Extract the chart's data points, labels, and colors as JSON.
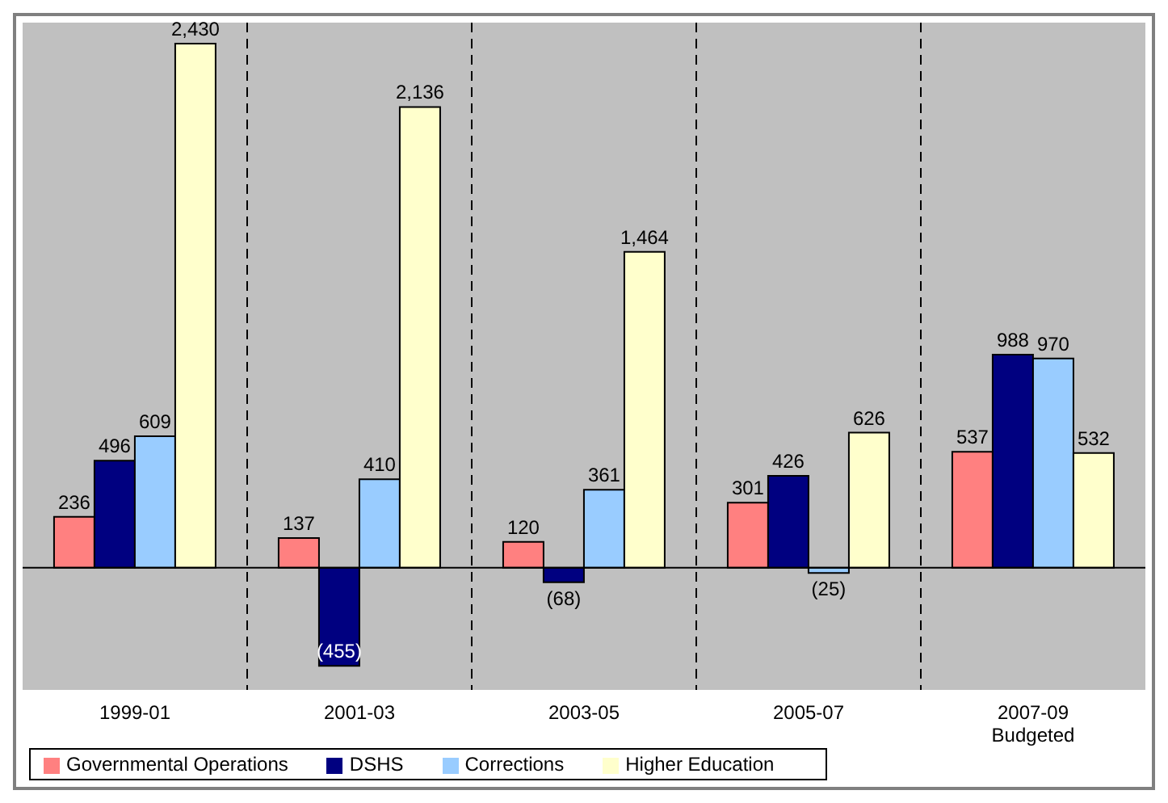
{
  "chart_data": {
    "type": "bar",
    "categories": [
      "1999-01",
      "2001-03",
      "2003-05",
      "2005-07",
      "2007-09 Budgeted"
    ],
    "series": [
      {
        "name": "Governmental Operations",
        "color": "#ff8080",
        "values": [
          236,
          137,
          120,
          301,
          537
        ],
        "value_labels": [
          "236",
          "137",
          "120",
          "301",
          "537"
        ]
      },
      {
        "name": "DSHS",
        "color": "#000080",
        "values": [
          496,
          -455,
          -68,
          426,
          988
        ],
        "value_labels": [
          "496",
          "(455)",
          "(68)",
          "426",
          "988"
        ]
      },
      {
        "name": "Corrections",
        "color": "#99ccff",
        "values": [
          609,
          410,
          361,
          -25,
          970
        ],
        "value_labels": [
          "609",
          "410",
          "361",
          "(25)",
          "970"
        ]
      },
      {
        "name": "Higher Education",
        "color": "#ffffcc",
        "values": [
          2430,
          2136,
          1464,
          626,
          532
        ],
        "value_labels": [
          "2,430",
          "2,136",
          "1,464",
          "626",
          "532"
        ]
      }
    ],
    "legend": "bottom left"
  }
}
